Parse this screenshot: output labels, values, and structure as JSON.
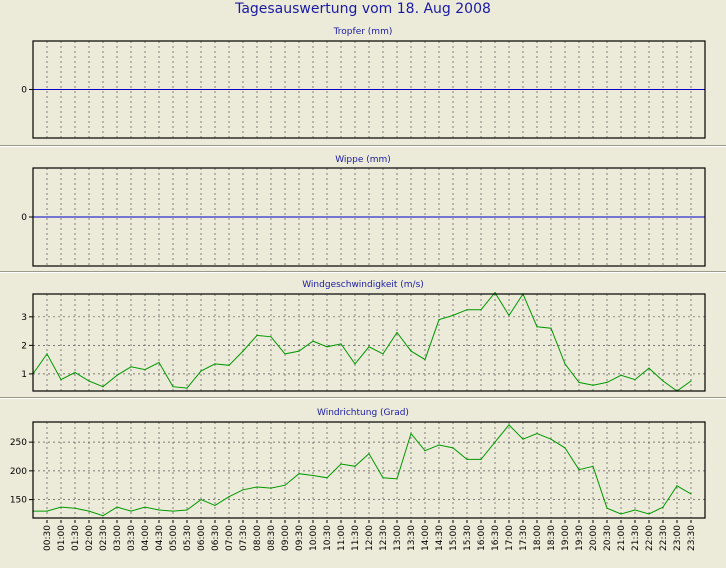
{
  "page": {
    "title": "Tagesauswertung vom 18. Aug 2008"
  },
  "colors": {
    "background": "#ecebd9",
    "title": "#1a1aa6",
    "zero_line": "#0000cc",
    "series_line": "#009900",
    "grid": "#000000"
  },
  "chart_data": [
    {
      "type": "line",
      "title": "Tropfer (mm)",
      "yticks": [
        0
      ],
      "ylim": [
        -1,
        1
      ],
      "zero_line": true,
      "series": [],
      "grid": true
    },
    {
      "type": "line",
      "title": "Wippe (mm)",
      "yticks": [
        0
      ],
      "ylim": [
        -1,
        1
      ],
      "zero_line": true,
      "series": [],
      "grid": true
    },
    {
      "type": "line",
      "title": "Windgeschwindigkeit (m/s)",
      "yticks": [
        1,
        2,
        3
      ],
      "ylim": [
        0.4,
        3.8
      ],
      "grid": true,
      "series": [
        {
          "values": [
            1.0,
            1.7,
            0.8,
            1.05,
            0.75,
            0.55,
            0.95,
            1.25,
            1.15,
            1.4,
            0.55,
            0.5,
            1.1,
            1.35,
            1.3,
            1.8,
            2.35,
            2.3,
            1.7,
            1.8,
            2.15,
            1.95,
            2.05,
            1.35,
            1.95,
            1.7,
            2.45,
            1.8,
            1.5,
            2.9,
            3.05,
            3.25,
            3.25,
            3.85,
            3.05,
            3.8,
            2.65,
            2.6,
            1.35,
            0.7,
            0.6,
            0.7,
            0.95,
            0.8,
            1.2,
            0.75,
            0.4,
            0.75
          ]
        }
      ]
    },
    {
      "type": "line",
      "title": "Windrichtung (Grad)",
      "yticks": [
        150,
        200,
        250
      ],
      "ylim": [
        118,
        285
      ],
      "grid": true,
      "series": [
        {
          "values": [
            130,
            130,
            137,
            135,
            130,
            122,
            137,
            130,
            137,
            132,
            130,
            132,
            150,
            140,
            155,
            167,
            172,
            170,
            175,
            195,
            192,
            188,
            212,
            208,
            230,
            188,
            186,
            265,
            235,
            245,
            240,
            220,
            220,
            250,
            280,
            255,
            265,
            255,
            240,
            202,
            208,
            135,
            125,
            132,
            125,
            137,
            174,
            160
          ]
        }
      ]
    }
  ],
  "x_axis": {
    "labels": [
      "00:30",
      "01:00",
      "01:30",
      "02:00",
      "02:30",
      "03:00",
      "03:30",
      "04:00",
      "04:30",
      "05:00",
      "05:30",
      "06:00",
      "06:30",
      "07:00",
      "07:30",
      "08:00",
      "08:30",
      "09:00",
      "09:30",
      "10:00",
      "10:30",
      "11:00",
      "11:30",
      "12:00",
      "12:30",
      "13:00",
      "13:30",
      "14:00",
      "14:30",
      "15:00",
      "15:30",
      "16:00",
      "16:30",
      "17:00",
      "17:30",
      "18:00",
      "18:30",
      "19:00",
      "19:30",
      "20:00",
      "20:30",
      "21:00",
      "21:30",
      "22:00",
      "22:30",
      "23:00",
      "23:30"
    ]
  }
}
